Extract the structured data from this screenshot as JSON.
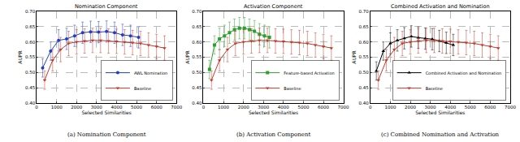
{
  "chart_data": [
    {
      "type": "line",
      "title": "Nomination Component",
      "caption": "(a) Nomination Component",
      "x_label": "Selected Similarities",
      "y_label": "AUPR",
      "xlim": [
        0,
        7000
      ],
      "xticks": [
        0,
        1000,
        2000,
        3000,
        4000,
        5000,
        6000,
        7000
      ],
      "ylim": [
        0.4,
        0.7
      ],
      "yticks": [
        {
          "value": 0.4,
          "label": "0.40"
        },
        {
          "value": 0.45,
          "label": "0.45"
        },
        {
          "value": 0.5,
          "label": "0.50"
        },
        {
          "value": 0.55,
          "label": "0.55"
        },
        {
          "value": 0.6,
          "label": "0.60"
        },
        {
          "value": 0.65,
          "label": "0.65"
        },
        {
          "value": 0.7,
          "label": "0.70"
        }
      ],
      "grid": true,
      "legend": "lower right",
      "series": [
        {
          "name": "AWL Nomination",
          "color": "#1f3fbf",
          "marker": "circle",
          "x": [
            300,
            700,
            1100,
            1500,
            1900,
            2300,
            2700,
            3100,
            3500,
            3900,
            4300,
            4700,
            5100
          ],
          "values": [
            0.515,
            0.57,
            0.605,
            0.61,
            0.62,
            0.63,
            0.633,
            0.632,
            0.634,
            0.63,
            0.623,
            0.62,
            0.615
          ],
          "error": [
            0.03,
            0.03,
            0.035,
            0.035,
            0.035,
            0.035,
            0.035,
            0.035,
            0.035,
            0.035,
            0.035,
            0.035,
            0.035
          ]
        },
        {
          "name": "Baseline",
          "color": "#c0392b",
          "marker": "triangle-down",
          "x": [
            400,
            800,
            1200,
            1600,
            2000,
            2400,
            2800,
            3200,
            3600,
            4000,
            4400,
            4800,
            5200,
            5600,
            6000,
            6400
          ],
          "values": [
            0.475,
            0.54,
            0.575,
            0.595,
            0.6,
            0.603,
            0.605,
            0.605,
            0.603,
            0.602,
            0.6,
            0.598,
            0.595,
            0.59,
            0.585,
            0.58
          ],
          "error": [
            0.03,
            0.035,
            0.04,
            0.04,
            0.04,
            0.04,
            0.04,
            0.04,
            0.04,
            0.04,
            0.04,
            0.04,
            0.04,
            0.04,
            0.04,
            0.04
          ]
        }
      ]
    },
    {
      "type": "line",
      "title": "Activation Component",
      "caption": "(b) Activation Component",
      "x_label": "Selected Similarities",
      "y_label": "AUPR",
      "xlim": [
        0,
        7000
      ],
      "xticks": [
        0,
        1000,
        2000,
        3000,
        4000,
        5000,
        6000,
        7000
      ],
      "ylim": [
        0.4,
        0.7
      ],
      "yticks": [
        {
          "value": 0.4,
          "label": "0.40"
        },
        {
          "value": 0.45,
          "label": "0.45"
        },
        {
          "value": 0.5,
          "label": "0.50"
        },
        {
          "value": 0.55,
          "label": "0.55"
        },
        {
          "value": 0.6,
          "label": "0.60"
        },
        {
          "value": 0.65,
          "label": "0.65"
        },
        {
          "value": 0.7,
          "label": "0.70"
        }
      ],
      "grid": true,
      "legend": "lower right",
      "series": [
        {
          "name": "Feature-based Activation",
          "color": "#2ca02c",
          "marker": "square",
          "x": [
            300,
            550,
            800,
            1050,
            1300,
            1550,
            1800,
            2050,
            2300,
            2550,
            2800,
            3050,
            3300
          ],
          "values": [
            0.51,
            0.59,
            0.61,
            0.62,
            0.63,
            0.64,
            0.645,
            0.645,
            0.64,
            0.635,
            0.625,
            0.62,
            0.615
          ],
          "error": [
            0.03,
            0.03,
            0.035,
            0.035,
            0.035,
            0.035,
            0.035,
            0.035,
            0.035,
            0.035,
            0.035,
            0.035,
            0.035
          ]
        },
        {
          "name": "Baseline",
          "color": "#c0392b",
          "marker": "triangle-down",
          "x": [
            400,
            800,
            1200,
            1600,
            2000,
            2400,
            2800,
            3200,
            3600,
            4000,
            4400,
            4800,
            5200,
            5600,
            6000,
            6400
          ],
          "values": [
            0.475,
            0.54,
            0.575,
            0.595,
            0.6,
            0.603,
            0.605,
            0.605,
            0.603,
            0.602,
            0.6,
            0.598,
            0.595,
            0.59,
            0.585,
            0.58
          ],
          "error": [
            0.03,
            0.035,
            0.04,
            0.04,
            0.04,
            0.04,
            0.04,
            0.04,
            0.04,
            0.04,
            0.04,
            0.04,
            0.04,
            0.04,
            0.04,
            0.04
          ]
        }
      ]
    },
    {
      "type": "line",
      "title": "Combined Activation and Nomination",
      "caption": "(c) Combined Nomination and Activation",
      "x_label": "Selected Similarities",
      "y_label": "AUPR",
      "xlim": [
        0,
        7000
      ],
      "xticks": [
        0,
        1000,
        2000,
        3000,
        4000,
        5000,
        6000,
        7000
      ],
      "ylim": [
        0.4,
        0.7
      ],
      "yticks": [
        {
          "value": 0.4,
          "label": "0.40"
        },
        {
          "value": 0.45,
          "label": "0.45"
        },
        {
          "value": 0.5,
          "label": "0.50"
        },
        {
          "value": 0.55,
          "label": "0.55"
        },
        {
          "value": 0.6,
          "label": "0.60"
        },
        {
          "value": 0.65,
          "label": "0.65"
        },
        {
          "value": 0.7,
          "label": "0.70"
        }
      ],
      "grid": true,
      "legend": "lower right",
      "series": [
        {
          "name": "Combined Activation and Nomination",
          "color": "#000000",
          "marker": "triangle-up",
          "x": [
            300,
            650,
            1000,
            1350,
            1700,
            2050,
            2400,
            2750,
            3100,
            3450,
            3800,
            4150
          ],
          "values": [
            0.505,
            0.57,
            0.595,
            0.605,
            0.612,
            0.618,
            0.614,
            0.611,
            0.609,
            0.603,
            0.597,
            0.59
          ],
          "error": [
            0.03,
            0.03,
            0.035,
            0.035,
            0.035,
            0.035,
            0.035,
            0.035,
            0.035,
            0.035,
            0.035,
            0.035
          ]
        },
        {
          "name": "Baseline",
          "color": "#c0392b",
          "marker": "triangle-down",
          "x": [
            400,
            800,
            1200,
            1600,
            2000,
            2400,
            2800,
            3200,
            3600,
            4000,
            4400,
            4800,
            5200,
            5600,
            6000,
            6400
          ],
          "values": [
            0.475,
            0.54,
            0.575,
            0.595,
            0.6,
            0.603,
            0.605,
            0.605,
            0.603,
            0.602,
            0.6,
            0.598,
            0.595,
            0.59,
            0.585,
            0.58
          ],
          "error": [
            0.03,
            0.035,
            0.04,
            0.04,
            0.04,
            0.04,
            0.04,
            0.04,
            0.04,
            0.04,
            0.04,
            0.04,
            0.04,
            0.04,
            0.04,
            0.04
          ]
        }
      ]
    }
  ]
}
